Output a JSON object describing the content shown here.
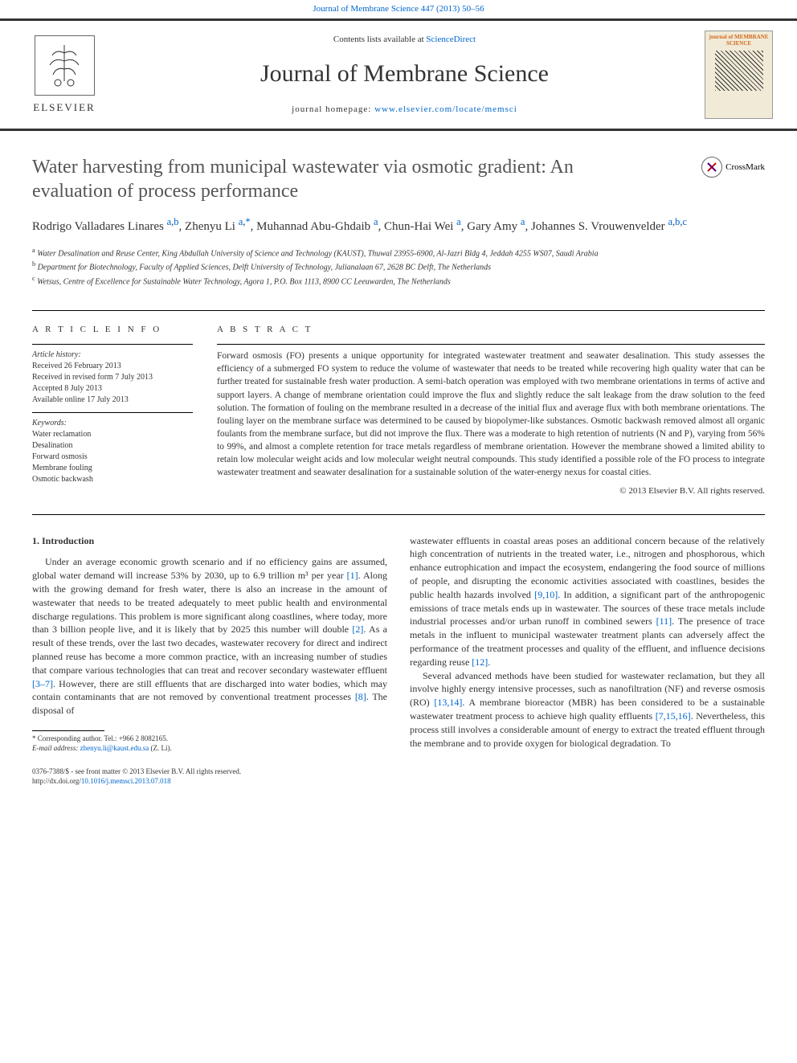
{
  "top_link": "Journal of Membrane Science 447 (2013) 50–56",
  "header": {
    "contents_prefix": "Contents lists available at ",
    "contents_link": "ScienceDirect",
    "journal_title": "Journal of Membrane Science",
    "homepage_prefix": "journal homepage: ",
    "homepage_url": "www.elsevier.com/locate/memsci",
    "elsevier": "ELSEVIER",
    "cover_title": "journal of MEMBRANE SCIENCE"
  },
  "article": {
    "title": "Water harvesting from municipal wastewater via osmotic gradient: An evaluation of process performance",
    "crossmark": "CrossMark",
    "authors_html": "Rodrigo Valladares Linares <sup><a>a</a>,<a>b</a></sup>, Zhenyu Li <sup><a>a</a>,<a>*</a></sup>, Muhannad Abu-Ghdaib <sup><a>a</a></sup>, Chun-Hai Wei <sup><a>a</a></sup>, Gary Amy <sup><a>a</a></sup>, Johannes S. Vrouwenvelder <sup><a>a</a>,<a>b</a>,<a>c</a></sup>",
    "affiliations": {
      "a": "Water Desalination and Reuse Center, King Abdullah University of Science and Technology (KAUST), Thuwal 23955-6900, Al-Jazri Bldg 4, Jeddah 4255 WS07, Saudi Arabia",
      "b": "Department for Biotechnology, Faculty of Applied Sciences, Delft University of Technology, Julianalaan 67, 2628 BC Delft, The Netherlands",
      "c": "Wetsus, Centre of Excellence for Sustainable Water Technology, Agora 1, P.O. Box 1113, 8900 CC Leeuwarden, The Netherlands"
    }
  },
  "article_info": {
    "heading": "A R T I C L E  I N F O",
    "history_label": "Article history:",
    "received": "Received 26 February 2013",
    "revised": "Received in revised form 7 July 2013",
    "accepted": "Accepted 8 July 2013",
    "available": "Available online 17 July 2013",
    "keywords_label": "Keywords:",
    "keywords": [
      "Water reclamation",
      "Desalination",
      "Forward osmosis",
      "Membrane fouling",
      "Osmotic backwash"
    ]
  },
  "abstract": {
    "heading": "A B S T R A C T",
    "text": "Forward osmosis (FO) presents a unique opportunity for integrated wastewater treatment and seawater desalination. This study assesses the efficiency of a submerged FO system to reduce the volume of wastewater that needs to be treated while recovering high quality water that can be further treated for sustainable fresh water production. A semi-batch operation was employed with two membrane orientations in terms of active and support layers. A change of membrane orientation could improve the flux and slightly reduce the salt leakage from the draw solution to the feed solution. The formation of fouling on the membrane resulted in a decrease of the initial flux and average flux with both membrane orientations. The fouling layer on the membrane surface was determined to be caused by biopolymer-like substances. Osmotic backwash removed almost all organic foulants from the membrane surface, but did not improve the flux. There was a moderate to high retention of nutrients (N and P), varying from 56% to 99%, and almost a complete retention for trace metals regardless of membrane orientation. However the membrane showed a limited ability to retain low molecular weight acids and low molecular weight neutral compounds. This study identified a possible role of the FO process to integrate wastewater treatment and seawater desalination for a sustainable solution of the water-energy nexus for coastal cities.",
    "copyright": "© 2013 Elsevier B.V. All rights reserved."
  },
  "body": {
    "section_heading": "1.  Introduction",
    "col1_p1": "Under an average economic growth scenario and if no efficiency gains are assumed, global water demand will increase 53% by 2030, up to 6.9 trillion m³ per year [1]. Along with the growing demand for fresh water, there is also an increase in the amount of wastewater that needs to be treated adequately to meet public health and environmental discharge regulations. This problem is more significant along coastlines, where today, more than 3 billion people live, and it is likely that by 2025 this number will double [2]. As a result of these trends, over the last two decades, wastewater recovery for direct and indirect planned reuse has become a more common practice, with an increasing number of studies that compare various technologies that can treat and recover secondary wastewater effluent [3–7]. However, there are still effluents that are discharged into water bodies, which may contain contaminants that are not removed by conventional treatment processes [8]. The disposal of",
    "col2_p1": "wastewater effluents in coastal areas poses an additional concern because of the relatively high concentration of nutrients in the treated water, i.e., nitrogen and phosphorous, which enhance eutrophication and impact the ecosystem, endangering the food source of millions of people, and disrupting the economic activities associated with coastlines, besides the public health hazards involved [9,10]. In addition, a significant part of the anthropogenic emissions of trace metals ends up in wastewater. The sources of these trace metals include industrial processes and/or urban runoff in combined sewers [11]. The presence of trace metals in the influent to municipal wastewater treatment plants can adversely affect the performance of the treatment processes and quality of the effluent, and influence decisions regarding reuse [12].",
    "col2_p2": "Several advanced methods have been studied for wastewater reclamation, but they all involve highly energy intensive processes, such as nanofiltration (NF) and reverse osmosis (RO) [13,14]. A membrane bioreactor (MBR) has been considered to be a sustainable wastewater treatment process to achieve high quality effluents [7,15,16]. Nevertheless, this process still involves a considerable amount of energy to extract the treated effluent through the membrane and to provide oxygen for biological degradation. To",
    "refs_col1": {
      "r1": "[1]",
      "r2": "[2]",
      "r3": "[3–7]",
      "r8": "[8]"
    },
    "refs_col2": {
      "r9": "[9,10]",
      "r11": "[11]",
      "r12": "[12]",
      "r13": "[13,14]",
      "r7": "[7,15,16]"
    }
  },
  "footnote": {
    "corr": "* Corresponding author. Tel.: +966 2 8082165.",
    "email_label": "E-mail address: ",
    "email": "zhenyu.li@kaust.edu.sa",
    "email_suffix": " (Z. Li)."
  },
  "bottom": {
    "issn": "0376-7388/$ - see front matter © 2013 Elsevier B.V. All rights reserved.",
    "doi_prefix": "http://dx.doi.org/",
    "doi": "10.1016/j.memsci.2013.07.018"
  },
  "colors": {
    "link": "#0066cc",
    "text": "#333333",
    "heading": "#555555"
  }
}
